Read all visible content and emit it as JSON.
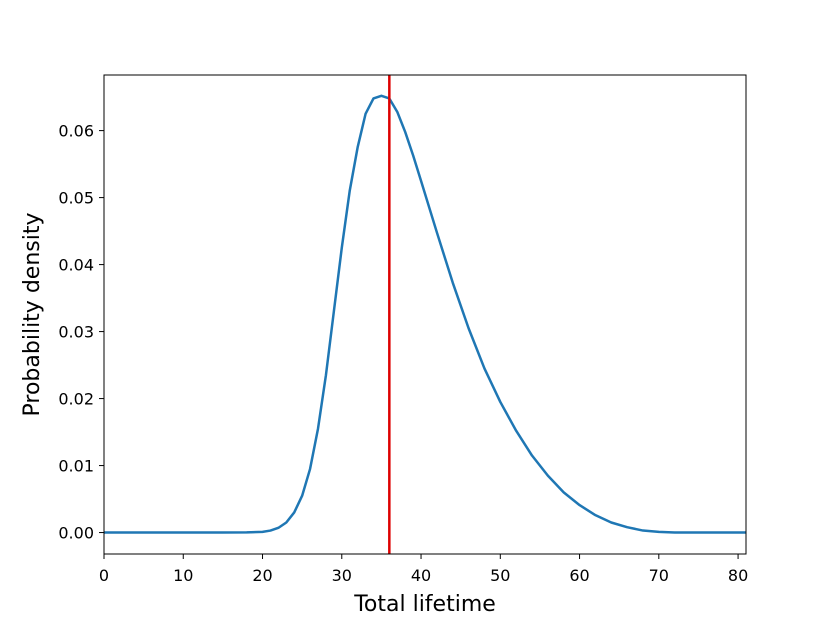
{
  "chart_data": {
    "type": "line",
    "title": "",
    "xlabel": "Total lifetime",
    "ylabel": "Probability density",
    "xlim": [
      0,
      81
    ],
    "ylim": [
      -0.0032,
      0.0683
    ],
    "xticks": [
      0,
      10,
      20,
      30,
      40,
      50,
      60,
      70,
      80
    ],
    "xtick_labels": [
      "0",
      "10",
      "20",
      "30",
      "40",
      "50",
      "60",
      "70",
      "80"
    ],
    "yticks": [
      0.0,
      0.01,
      0.02,
      0.03,
      0.04,
      0.05,
      0.06
    ],
    "ytick_labels": [
      "0.00",
      "0.01",
      "0.02",
      "0.03",
      "0.04",
      "0.05",
      "0.06"
    ],
    "grid": false,
    "series": [
      {
        "color": "#1f77b4",
        "x": [
          0,
          5,
          10,
          15,
          18,
          20,
          21,
          22,
          23,
          24,
          25,
          26,
          27,
          28,
          29,
          30,
          31,
          32,
          33,
          34,
          35,
          36,
          37,
          38,
          39,
          40,
          42,
          44,
          46,
          48,
          50,
          52,
          54,
          56,
          58,
          60,
          62,
          64,
          66,
          68,
          70,
          72,
          75,
          81
        ],
        "y": [
          0.0,
          0.0,
          0.0,
          0.0,
          2e-05,
          0.0001,
          0.0003,
          0.0007,
          0.0015,
          0.003,
          0.0055,
          0.0095,
          0.0155,
          0.0235,
          0.033,
          0.0425,
          0.051,
          0.0575,
          0.0625,
          0.0648,
          0.0652,
          0.0648,
          0.0628,
          0.0598,
          0.0563,
          0.0525,
          0.0448,
          0.0373,
          0.0305,
          0.0245,
          0.0195,
          0.0152,
          0.0115,
          0.0085,
          0.006,
          0.0041,
          0.0026,
          0.0015,
          0.0008,
          0.0003,
          0.0001,
          0.0,
          0.0,
          0.0
        ]
      }
    ],
    "vline": {
      "x": 36,
      "color": "#dd0000"
    }
  }
}
